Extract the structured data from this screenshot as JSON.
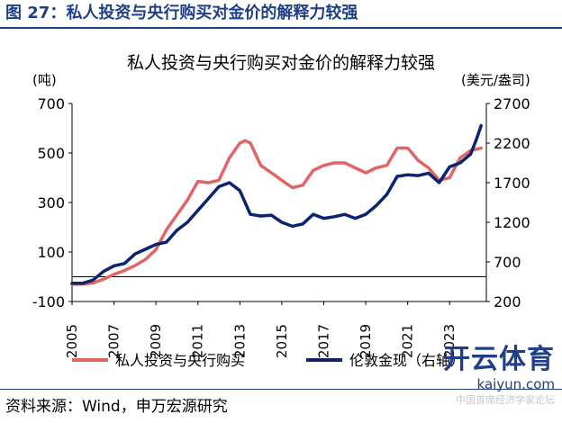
{
  "figure_title": "图 27：私人投资与央行购买对金价的解释力较强",
  "source": "资料来源：Wind，申万宏源研究",
  "watermark": {
    "logo": "开云体育",
    "url": "kaiyun.com",
    "sub": "中国首席经济学家论坛"
  },
  "colors": {
    "accent": "#1f3f87",
    "private": "#e06666",
    "gold": "#0a2472"
  },
  "chart_data": {
    "type": "line",
    "title": "私人投资与央行购买对金价的解释力较强",
    "left_axis": {
      "unit": "(吨)",
      "range": [
        -100,
        700
      ],
      "ticks": [
        -100,
        100,
        300,
        500,
        700
      ]
    },
    "right_axis": {
      "unit": "(美元/盎司)",
      "range": [
        200,
        2700
      ],
      "ticks": [
        200,
        700,
        1200,
        1700,
        2200,
        2700
      ]
    },
    "x_axis": {
      "range": [
        2005,
        2024.75
      ],
      "ticks": [
        "2005",
        "2007",
        "2009",
        "2011",
        "2013",
        "2015",
        "2017",
        "2019",
        "2021",
        "2023"
      ]
    },
    "legend_position": "bottom",
    "series": [
      {
        "name": "私人投资与央行购买",
        "axis": "left",
        "color": "#e06666",
        "x": [
          2005,
          2005.5,
          2006,
          2006.5,
          2007,
          2007.5,
          2008,
          2008.5,
          2009,
          2009.5,
          2010,
          2010.5,
          2011,
          2011.5,
          2012,
          2012.5,
          2013,
          2013.25,
          2013.5,
          2014,
          2014.5,
          2015,
          2015.5,
          2016,
          2016.5,
          2017,
          2017.5,
          2018,
          2018.5,
          2019,
          2019.5,
          2020,
          2020.5,
          2021,
          2021.5,
          2022,
          2022.5,
          2023,
          2023.5,
          2024,
          2024.5
        ],
        "values": [
          -30,
          -30,
          -25,
          -10,
          10,
          25,
          45,
          70,
          110,
          190,
          250,
          310,
          385,
          380,
          390,
          480,
          540,
          550,
          540,
          450,
          420,
          390,
          360,
          370,
          430,
          450,
          460,
          460,
          440,
          420,
          440,
          450,
          520,
          520,
          470,
          440,
          390,
          400,
          480,
          510,
          520
        ]
      },
      {
        "name": "伦敦金现（右轴）",
        "axis": "right",
        "color": "#0a2472",
        "x": [
          2005,
          2005.5,
          2006,
          2006.5,
          2007,
          2007.5,
          2008,
          2008.5,
          2009,
          2009.5,
          2010,
          2010.5,
          2011,
          2011.5,
          2012,
          2012.5,
          2013,
          2013.5,
          2014,
          2014.5,
          2015,
          2015.5,
          2016,
          2016.5,
          2017,
          2017.5,
          2018,
          2018.5,
          2019,
          2019.5,
          2020,
          2020.5,
          2021,
          2021.5,
          2022,
          2022.5,
          2023,
          2023.5,
          2024,
          2024.25,
          2024.5
        ],
        "values": [
          430,
          430,
          470,
          580,
          650,
          680,
          800,
          860,
          920,
          950,
          1100,
          1200,
          1350,
          1500,
          1650,
          1700,
          1600,
          1300,
          1280,
          1290,
          1200,
          1150,
          1180,
          1300,
          1250,
          1270,
          1300,
          1250,
          1300,
          1410,
          1550,
          1780,
          1800,
          1790,
          1820,
          1700,
          1900,
          1950,
          2060,
          2230,
          2420
        ]
      }
    ]
  }
}
